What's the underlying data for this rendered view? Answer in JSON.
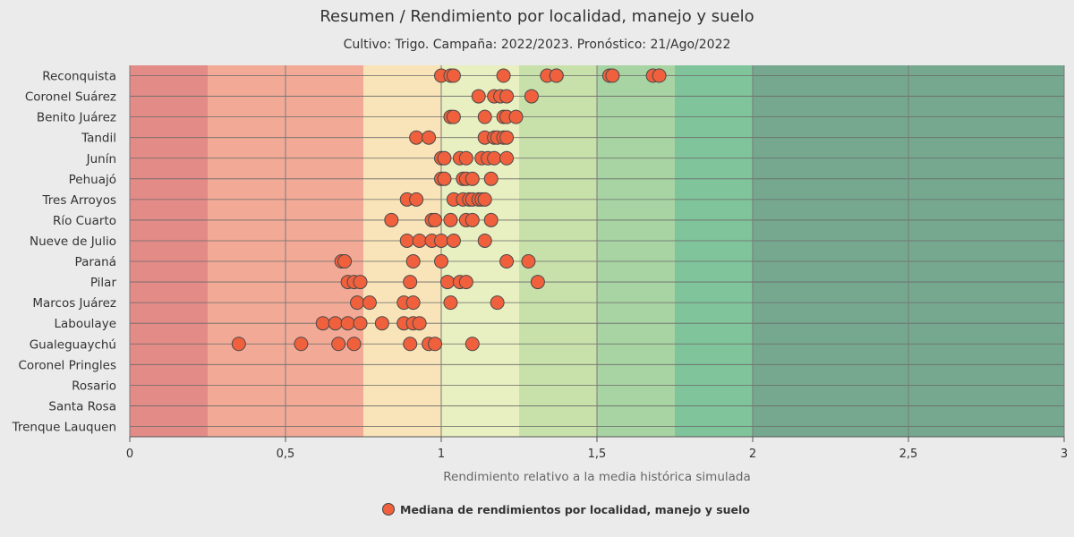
{
  "chart_data": {
    "type": "scatter",
    "title": "Resumen / Rendimiento por localidad, manejo y suelo",
    "subtitle": "Cultivo: Trigo. Campaña: 2022/2023. Pronóstico: 21/Ago/2022",
    "xlabel": "Rendimiento relativo a la media histórica simulada",
    "ylabel": "",
    "xlim": [
      0,
      3
    ],
    "x_ticks": [
      0,
      0.5,
      1,
      1.5,
      2,
      2.5,
      3
    ],
    "x_tick_labels": [
      "0",
      "0,5",
      "1",
      "1,5",
      "2",
      "2,5",
      "3"
    ],
    "grid": true,
    "legend_position": "bottom-center",
    "bands": [
      {
        "from": 0,
        "to": 0.25,
        "color": "#e38b87"
      },
      {
        "from": 0.25,
        "to": 0.5,
        "color": "#f2aa96"
      },
      {
        "from": 0.5,
        "to": 0.75,
        "color": "#f2aa96"
      },
      {
        "from": 0.75,
        "to": 1.0,
        "color": "#f8e4b8"
      },
      {
        "from": 1.0,
        "to": 1.25,
        "color": "#e8efc0"
      },
      {
        "from": 1.25,
        "to": 1.5,
        "color": "#c8e1ab"
      },
      {
        "from": 1.5,
        "to": 1.75,
        "color": "#a8d4a3"
      },
      {
        "from": 1.75,
        "to": 2.0,
        "color": "#80c49b"
      },
      {
        "from": 2.0,
        "to": 3.0,
        "color": "#76a88f"
      }
    ],
    "categories": [
      "Reconquista",
      "Coronel Suárez",
      "Benito Juárez",
      "Tandil",
      "Junín",
      "Pehuajó",
      "Tres Arroyos",
      "Río Cuarto",
      "Nueve de Julio",
      "Paraná",
      "Pilar",
      "Marcos Juárez",
      "Laboulaye",
      "Gualeguaychú",
      "Coronel Pringles",
      "Rosario",
      "Santa Rosa",
      "Trenque Lauquen"
    ],
    "series": [
      {
        "name": "Mediana de rendimientos por localidad, manejo y suelo",
        "color": "#f0603c",
        "points": [
          {
            "category": "Reconquista",
            "values": [
              1.0,
              1.03,
              1.04,
              1.2,
              1.34,
              1.37,
              1.37,
              1.54,
              1.55,
              1.68,
              1.7
            ]
          },
          {
            "category": "Coronel Suárez",
            "values": [
              1.12,
              1.17,
              1.19,
              1.21,
              1.29
            ]
          },
          {
            "category": "Benito Juárez",
            "values": [
              1.03,
              1.04,
              1.14,
              1.2,
              1.21,
              1.24
            ]
          },
          {
            "category": "Tandil",
            "values": [
              0.92,
              0.96,
              1.14,
              1.17,
              1.18,
              1.2,
              1.21
            ]
          },
          {
            "category": "Junín",
            "values": [
              1.0,
              1.01,
              1.06,
              1.08,
              1.13,
              1.15,
              1.17,
              1.21
            ]
          },
          {
            "category": "Pehuajó",
            "values": [
              1.0,
              1.01,
              1.07,
              1.08,
              1.1,
              1.16
            ]
          },
          {
            "category": "Tres Arroyos",
            "values": [
              0.89,
              0.92,
              1.04,
              1.07,
              1.09,
              1.1,
              1.12,
              1.13,
              1.14
            ]
          },
          {
            "category": "Río Cuarto",
            "values": [
              0.84,
              0.97,
              0.98,
              1.03,
              1.08,
              1.1,
              1.16
            ]
          },
          {
            "category": "Nueve de Julio",
            "values": [
              0.89,
              0.93,
              0.97,
              1.0,
              1.04,
              1.14
            ]
          },
          {
            "category": "Paraná",
            "values": [
              0.68,
              0.69,
              0.91,
              1.0,
              1.21,
              1.28
            ]
          },
          {
            "category": "Pilar",
            "values": [
              0.7,
              0.72,
              0.74,
              0.9,
              1.02,
              1.06,
              1.08,
              1.31
            ]
          },
          {
            "category": "Marcos Juárez",
            "values": [
              0.73,
              0.77,
              0.88,
              0.91,
              1.03,
              1.18
            ]
          },
          {
            "category": "Laboulaye",
            "values": [
              0.62,
              0.66,
              0.7,
              0.74,
              0.81,
              0.88,
              0.91,
              0.93
            ]
          },
          {
            "category": "Gualeguaychú",
            "values": [
              0.35,
              0.55,
              0.67,
              0.72,
              0.9,
              0.96,
              0.98,
              1.1
            ]
          },
          {
            "category": "Coronel Pringles",
            "values": []
          },
          {
            "category": "Rosario",
            "values": []
          },
          {
            "category": "Santa Rosa",
            "values": []
          },
          {
            "category": "Trenque Lauquen",
            "values": []
          }
        ]
      }
    ]
  }
}
